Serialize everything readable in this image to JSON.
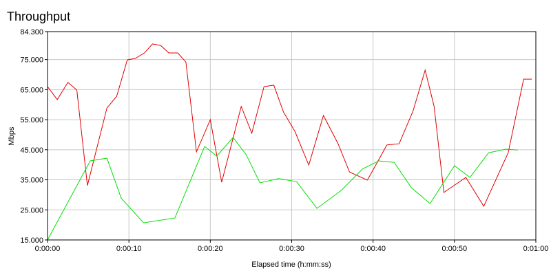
{
  "chart_data": {
    "type": "line",
    "title": "Throughput",
    "x_label": "Elapsed time (h:mm:ss)",
    "y_label": "Mbps",
    "xlim": [
      0,
      60
    ],
    "xticks": [
      {
        "value": 0,
        "label": "0:00:00"
      },
      {
        "value": 10,
        "label": "0:00:10"
      },
      {
        "value": 20,
        "label": "0:00:20"
      },
      {
        "value": 30,
        "label": "0:00:30"
      },
      {
        "value": 40,
        "label": "0:00:40"
      },
      {
        "value": 50,
        "label": "0:00:50"
      },
      {
        "value": 60,
        "label": "0:01:00"
      }
    ],
    "ylim": [
      15,
      84.3
    ],
    "yticks": [
      {
        "value": 15,
        "label": "15.000"
      },
      {
        "value": 25,
        "label": "25.000"
      },
      {
        "value": 35,
        "label": "35.000"
      },
      {
        "value": 45,
        "label": "45.000"
      },
      {
        "value": 55,
        "label": "55.000"
      },
      {
        "value": 65,
        "label": "65.000"
      },
      {
        "value": 75,
        "label": "75.000"
      },
      {
        "value": 84.3,
        "label": "84.300"
      }
    ],
    "grid": true,
    "series": [
      {
        "color": "#e00000",
        "x": [
          0,
          1.2,
          2.5,
          3.6,
          4.9,
          7.3,
          8.5,
          9.8,
          10.8,
          11.9,
          12.9,
          13.9,
          14.9,
          16,
          17,
          18.3,
          20,
          21.4,
          23.8,
          25.1,
          26.6,
          27.8,
          29,
          30.4,
          32.1,
          33.9,
          35.7,
          37.1,
          39.3,
          41.7,
          43.2,
          44.9,
          46.4,
          47.5,
          48.7,
          51.4,
          53.6,
          56.6,
          58.5,
          59.5
        ],
        "values": [
          66.0,
          61.7,
          67.4,
          64.9,
          33.1,
          58.9,
          62.8,
          74.9,
          75.4,
          77.2,
          80.2,
          79.7,
          77.2,
          77.2,
          74.2,
          44.3,
          55.0,
          34.2,
          59.4,
          50.5,
          66.0,
          66.5,
          57.5,
          51.1,
          39.9,
          56.4,
          47.0,
          37.6,
          34.9,
          46.6,
          47.0,
          57.8,
          71.5,
          59.4,
          30.8,
          35.8,
          26.2,
          44.0,
          68.5,
          68.5
        ]
      },
      {
        "color": "#00e000",
        "x": [
          0,
          5.25,
          7.3,
          9.05,
          11.8,
          15.65,
          19.3,
          20.8,
          22.8,
          24.4,
          26.1,
          28.4,
          30.6,
          33.1,
          36.1,
          38.7,
          40.7,
          42.6,
          44.7,
          47,
          50,
          51.9,
          54.2,
          56.3,
          57.8
        ],
        "values": [
          15.0,
          41.3,
          42.2,
          28.9,
          20.7,
          22.3,
          46.1,
          42.9,
          49.1,
          43.4,
          34.0,
          35.4,
          34.4,
          25.5,
          31.5,
          38.6,
          41.3,
          40.8,
          32.4,
          27.1,
          39.7,
          35.8,
          44.0,
          45.2,
          44.9
        ]
      }
    ]
  }
}
